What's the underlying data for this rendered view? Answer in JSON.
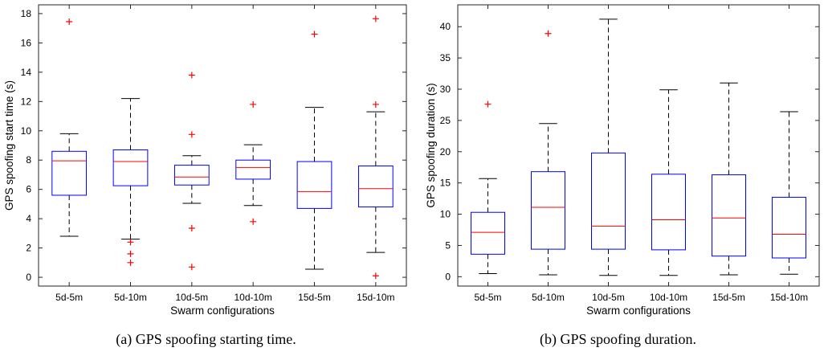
{
  "chart_data": [
    {
      "type": "box",
      "panel": "a",
      "caption": "(a) GPS spoofing starting time.",
      "xlabel": "Swarm configurations",
      "ylabel": "GPS spoofing start time (s)",
      "ylim": [
        -0.6,
        18.6
      ],
      "yticks": [
        0,
        2,
        4,
        6,
        8,
        10,
        12,
        14,
        16,
        18
      ],
      "categories": [
        "5d-5m",
        "5d-10m",
        "10d-5m",
        "10d-10m",
        "15d-5m",
        "15d-10m"
      ],
      "boxes": [
        {
          "whisker_low": 2.8,
          "q1": 5.6,
          "median": 7.95,
          "q3": 8.6,
          "whisker_high": 9.8,
          "outliers": [
            17.45
          ]
        },
        {
          "whisker_low": 2.6,
          "q1": 6.25,
          "median": 7.9,
          "q3": 8.7,
          "whisker_high": 12.2,
          "outliers": [
            2.4,
            1.6,
            1.0
          ]
        },
        {
          "whisker_low": 5.05,
          "q1": 6.3,
          "median": 6.85,
          "q3": 7.65,
          "whisker_high": 8.3,
          "outliers": [
            13.8,
            9.75,
            3.35,
            0.7
          ]
        },
        {
          "whisker_low": 4.9,
          "q1": 6.7,
          "median": 7.5,
          "q3": 8.0,
          "whisker_high": 9.05,
          "outliers": [
            11.8,
            3.8
          ]
        },
        {
          "whisker_low": 0.55,
          "q1": 4.7,
          "median": 5.85,
          "q3": 7.9,
          "whisker_high": 11.6,
          "outliers": [
            16.6
          ]
        },
        {
          "whisker_low": 1.7,
          "q1": 4.8,
          "median": 6.05,
          "q3": 7.6,
          "whisker_high": 11.3,
          "outliers": [
            17.65,
            11.8,
            0.1
          ]
        }
      ],
      "colors": {
        "box": "#0000ff",
        "median": "#ff0000",
        "whisker": "#000000",
        "outlier": "#ff0000"
      }
    },
    {
      "type": "box",
      "panel": "b",
      "caption": "(b) GPS spoofing duration.",
      "xlabel": "Swarm configurations",
      "ylabel": "GPS spoofing duration (s)",
      "ylim": [
        -1.5,
        43.5
      ],
      "yticks": [
        0,
        5,
        10,
        15,
        20,
        25,
        30,
        35,
        40
      ],
      "categories": [
        "5d-5m",
        "5d-10m",
        "10d-5m",
        "10d-10m",
        "15d-5m",
        "15d-10m"
      ],
      "boxes": [
        {
          "whisker_low": 0.5,
          "q1": 3.6,
          "median": 7.1,
          "q3": 10.3,
          "whisker_high": 15.7,
          "outliers": [
            27.6
          ]
        },
        {
          "whisker_low": 0.3,
          "q1": 4.4,
          "median": 11.1,
          "q3": 16.8,
          "whisker_high": 24.5,
          "outliers": [
            38.9
          ]
        },
        {
          "whisker_low": 0.2,
          "q1": 4.4,
          "median": 8.1,
          "q3": 19.8,
          "whisker_high": 41.2,
          "outliers": []
        },
        {
          "whisker_low": 0.2,
          "q1": 4.3,
          "median": 9.1,
          "q3": 16.4,
          "whisker_high": 29.9,
          "outliers": []
        },
        {
          "whisker_low": 0.3,
          "q1": 3.3,
          "median": 9.4,
          "q3": 16.3,
          "whisker_high": 31.0,
          "outliers": []
        },
        {
          "whisker_low": 0.4,
          "q1": 3.0,
          "median": 6.8,
          "q3": 12.7,
          "whisker_high": 26.4,
          "outliers": []
        }
      ],
      "colors": {
        "box": "#0000ff",
        "median": "#ff0000",
        "whisker": "#000000",
        "outlier": "#ff0000"
      }
    }
  ]
}
